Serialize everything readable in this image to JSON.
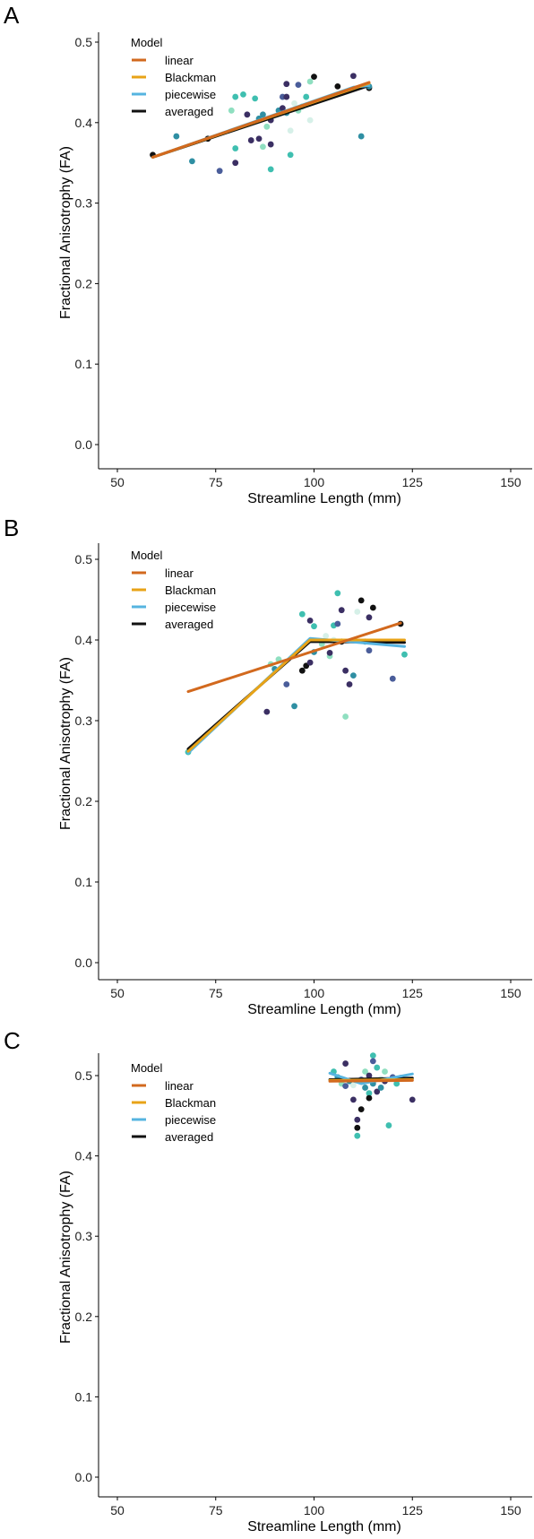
{
  "colors": {
    "linear": "#d2691e",
    "Blackman": "#e8a317",
    "piecewise": "#56b4e0",
    "averaged": "#111111",
    "point_palette": [
      "#3b2f63",
      "#4a5d9a",
      "#2f8fa3",
      "#3fbfb0",
      "#8fdfc0",
      "#d6f0e8",
      "#111111"
    ]
  },
  "chart_data": [
    {
      "panel": "A",
      "type": "scatter",
      "xlabel": "Streamline Length (mm)",
      "ylabel": "Fractional Anisotrophy (FA)",
      "xlim": [
        45,
        155
      ],
      "ylim": [
        -0.03,
        0.525
      ],
      "xticks": [
        "50",
        "75",
        "100",
        "125",
        "150"
      ],
      "xtick_values": [
        50,
        75,
        100,
        125,
        150
      ],
      "yticks": [
        "0.0",
        "0.1",
        "0.2",
        "0.3",
        "0.4",
        "0.5"
      ],
      "ytick_values": [
        0.0,
        0.1,
        0.2,
        0.3,
        0.4,
        0.5
      ],
      "legend": {
        "title": "Model",
        "position": "top-left",
        "entries": [
          "linear",
          "Blackman",
          "piecewise",
          "averaged"
        ]
      },
      "points": [
        {
          "x": 59,
          "y": 0.36,
          "c": 6
        },
        {
          "x": 65,
          "y": 0.383,
          "c": 2
        },
        {
          "x": 69,
          "y": 0.352,
          "c": 2
        },
        {
          "x": 73,
          "y": 0.38,
          "c": 6
        },
        {
          "x": 76,
          "y": 0.34,
          "c": 1
        },
        {
          "x": 79,
          "y": 0.415,
          "c": 4
        },
        {
          "x": 80,
          "y": 0.432,
          "c": 3
        },
        {
          "x": 80,
          "y": 0.368,
          "c": 3
        },
        {
          "x": 80,
          "y": 0.35,
          "c": 0
        },
        {
          "x": 82,
          "y": 0.435,
          "c": 3
        },
        {
          "x": 83,
          "y": 0.41,
          "c": 0
        },
        {
          "x": 84,
          "y": 0.378,
          "c": 0
        },
        {
          "x": 85,
          "y": 0.43,
          "c": 3
        },
        {
          "x": 86,
          "y": 0.38,
          "c": 0
        },
        {
          "x": 86,
          "y": 0.405,
          "c": 2
        },
        {
          "x": 87,
          "y": 0.41,
          "c": 2
        },
        {
          "x": 87,
          "y": 0.37,
          "c": 4
        },
        {
          "x": 88,
          "y": 0.395,
          "c": 4
        },
        {
          "x": 89,
          "y": 0.403,
          "c": 0
        },
        {
          "x": 89,
          "y": 0.342,
          "c": 3
        },
        {
          "x": 89,
          "y": 0.373,
          "c": 0
        },
        {
          "x": 91,
          "y": 0.415,
          "c": 2
        },
        {
          "x": 92,
          "y": 0.432,
          "c": 1
        },
        {
          "x": 92,
          "y": 0.418,
          "c": 0
        },
        {
          "x": 93,
          "y": 0.432,
          "c": 0
        },
        {
          "x": 93,
          "y": 0.448,
          "c": 0
        },
        {
          "x": 93,
          "y": 0.412,
          "c": 2
        },
        {
          "x": 94,
          "y": 0.39,
          "c": 5
        },
        {
          "x": 94,
          "y": 0.36,
          "c": 3
        },
        {
          "x": 95,
          "y": 0.424,
          "c": 5
        },
        {
          "x": 96,
          "y": 0.447,
          "c": 1
        },
        {
          "x": 96,
          "y": 0.415,
          "c": 4
        },
        {
          "x": 97,
          "y": 0.42,
          "c": 4
        },
        {
          "x": 98,
          "y": 0.432,
          "c": 3
        },
        {
          "x": 99,
          "y": 0.451,
          "c": 4
        },
        {
          "x": 99,
          "y": 0.403,
          "c": 5
        },
        {
          "x": 100,
          "y": 0.457,
          "c": 6
        },
        {
          "x": 106,
          "y": 0.445,
          "c": 6
        },
        {
          "x": 110,
          "y": 0.458,
          "c": 0
        },
        {
          "x": 112,
          "y": 0.383,
          "c": 2
        },
        {
          "x": 114,
          "y": 0.443,
          "c": 6
        },
        {
          "x": 114,
          "y": 0.445,
          "c": 2
        }
      ],
      "lines": [
        {
          "model": "averaged",
          "x": [
            59,
            114
          ],
          "y": [
            0.357,
            0.446
          ]
        },
        {
          "model": "piecewise",
          "x": [
            59,
            110,
            114
          ],
          "y": [
            0.357,
            0.444,
            0.446
          ]
        },
        {
          "model": "Blackman",
          "x": [
            59,
            114
          ],
          "y": [
            0.357,
            0.449
          ]
        },
        {
          "model": "linear",
          "x": [
            59,
            114
          ],
          "y": [
            0.357,
            0.45
          ]
        }
      ]
    },
    {
      "panel": "B",
      "type": "scatter",
      "xlabel": "Streamline Length (mm)",
      "ylabel": "Fractional Anisotrophy (FA)",
      "xlim": [
        45,
        155
      ],
      "ylim": [
        -0.03,
        0.525
      ],
      "xticks": [
        "50",
        "75",
        "100",
        "125",
        "150"
      ],
      "xtick_values": [
        50,
        75,
        100,
        125,
        150
      ],
      "yticks": [
        "0.0",
        "0.1",
        "0.2",
        "0.3",
        "0.4",
        "0.5"
      ],
      "ytick_values": [
        0.0,
        0.1,
        0.2,
        0.3,
        0.4,
        0.5
      ],
      "legend": {
        "title": "Model",
        "position": "top-left",
        "entries": [
          "linear",
          "Blackman",
          "piecewise",
          "averaged"
        ]
      },
      "points": [
        {
          "x": 68,
          "y": 0.261,
          "c": 3
        },
        {
          "x": 88,
          "y": 0.311,
          "c": 0
        },
        {
          "x": 89,
          "y": 0.37,
          "c": 4
        },
        {
          "x": 90,
          "y": 0.364,
          "c": 2
        },
        {
          "x": 91,
          "y": 0.376,
          "c": 4
        },
        {
          "x": 93,
          "y": 0.345,
          "c": 1
        },
        {
          "x": 95,
          "y": 0.318,
          "c": 2
        },
        {
          "x": 97,
          "y": 0.362,
          "c": 6
        },
        {
          "x": 97,
          "y": 0.432,
          "c": 3
        },
        {
          "x": 98,
          "y": 0.368,
          "c": 6
        },
        {
          "x": 99,
          "y": 0.372,
          "c": 0
        },
        {
          "x": 99,
          "y": 0.424,
          "c": 0
        },
        {
          "x": 100,
          "y": 0.417,
          "c": 3
        },
        {
          "x": 100,
          "y": 0.385,
          "c": 2
        },
        {
          "x": 102,
          "y": 0.395,
          "c": 4
        },
        {
          "x": 103,
          "y": 0.405,
          "c": 5
        },
        {
          "x": 104,
          "y": 0.38,
          "c": 4
        },
        {
          "x": 104,
          "y": 0.384,
          "c": 0
        },
        {
          "x": 105,
          "y": 0.418,
          "c": 3
        },
        {
          "x": 105,
          "y": 0.4,
          "c": 5
        },
        {
          "x": 106,
          "y": 0.458,
          "c": 3
        },
        {
          "x": 106,
          "y": 0.42,
          "c": 1
        },
        {
          "x": 107,
          "y": 0.437,
          "c": 0
        },
        {
          "x": 107,
          "y": 0.398,
          "c": 6
        },
        {
          "x": 108,
          "y": 0.305,
          "c": 4
        },
        {
          "x": 108,
          "y": 0.362,
          "c": 0
        },
        {
          "x": 109,
          "y": 0.345,
          "c": 0
        },
        {
          "x": 110,
          "y": 0.356,
          "c": 2
        },
        {
          "x": 111,
          "y": 0.435,
          "c": 5
        },
        {
          "x": 112,
          "y": 0.449,
          "c": 6
        },
        {
          "x": 113,
          "y": 0.398,
          "c": 2
        },
        {
          "x": 114,
          "y": 0.428,
          "c": 0
        },
        {
          "x": 114,
          "y": 0.387,
          "c": 1
        },
        {
          "x": 115,
          "y": 0.44,
          "c": 6
        },
        {
          "x": 120,
          "y": 0.352,
          "c": 1
        },
        {
          "x": 122,
          "y": 0.42,
          "c": 6
        },
        {
          "x": 123,
          "y": 0.382,
          "c": 3
        }
      ],
      "lines": [
        {
          "model": "averaged",
          "x": [
            68,
            99,
            123
          ],
          "y": [
            0.265,
            0.398,
            0.397
          ]
        },
        {
          "model": "piecewise",
          "x": [
            68,
            99,
            123
          ],
          "y": [
            0.26,
            0.402,
            0.392
          ]
        },
        {
          "model": "Blackman",
          "x": [
            68,
            99,
            123
          ],
          "y": [
            0.262,
            0.4,
            0.4
          ]
        },
        {
          "model": "linear",
          "x": [
            68,
            122
          ],
          "y": [
            0.336,
            0.421
          ]
        }
      ]
    },
    {
      "panel": "C",
      "type": "scatter",
      "xlabel": "Streamline Length (mm)",
      "ylabel": "Fractional Anisotrophy (FA)",
      "xlim": [
        45,
        155
      ],
      "ylim": [
        -0.03,
        0.525
      ],
      "xticks": [
        "50",
        "75",
        "100",
        "125",
        "150"
      ],
      "xtick_values": [
        50,
        75,
        100,
        125,
        150
      ],
      "yticks": [
        "0.0",
        "0.1",
        "0.2",
        "0.3",
        "0.4",
        "0.5"
      ],
      "ytick_values": [
        0.0,
        0.1,
        0.2,
        0.3,
        0.4,
        0.5
      ],
      "legend": {
        "title": "Model",
        "position": "top-left",
        "entries": [
          "linear",
          "Blackman",
          "piecewise",
          "averaged"
        ]
      },
      "points": [
        {
          "x": 105,
          "y": 0.505,
          "c": 3
        },
        {
          "x": 106,
          "y": 0.498,
          "c": 2
        },
        {
          "x": 107,
          "y": 0.49,
          "c": 4
        },
        {
          "x": 108,
          "y": 0.515,
          "c": 0
        },
        {
          "x": 108,
          "y": 0.487,
          "c": 1
        },
        {
          "x": 109,
          "y": 0.493,
          "c": 2
        },
        {
          "x": 110,
          "y": 0.488,
          "c": 5
        },
        {
          "x": 110,
          "y": 0.47,
          "c": 0
        },
        {
          "x": 111,
          "y": 0.445,
          "c": 0
        },
        {
          "x": 111,
          "y": 0.435,
          "c": 6
        },
        {
          "x": 111,
          "y": 0.425,
          "c": 3
        },
        {
          "x": 112,
          "y": 0.458,
          "c": 6
        },
        {
          "x": 112,
          "y": 0.495,
          "c": 1
        },
        {
          "x": 113,
          "y": 0.485,
          "c": 2
        },
        {
          "x": 113,
          "y": 0.505,
          "c": 4
        },
        {
          "x": 114,
          "y": 0.5,
          "c": 0
        },
        {
          "x": 114,
          "y": 0.478,
          "c": 3
        },
        {
          "x": 114,
          "y": 0.472,
          "c": 6
        },
        {
          "x": 115,
          "y": 0.525,
          "c": 3
        },
        {
          "x": 115,
          "y": 0.518,
          "c": 1
        },
        {
          "x": 115,
          "y": 0.49,
          "c": 2
        },
        {
          "x": 116,
          "y": 0.51,
          "c": 3
        },
        {
          "x": 116,
          "y": 0.48,
          "c": 0
        },
        {
          "x": 117,
          "y": 0.485,
          "c": 2
        },
        {
          "x": 117,
          "y": 0.496,
          "c": 5
        },
        {
          "x": 118,
          "y": 0.505,
          "c": 4
        },
        {
          "x": 118,
          "y": 0.493,
          "c": 0
        },
        {
          "x": 119,
          "y": 0.438,
          "c": 3
        },
        {
          "x": 120,
          "y": 0.498,
          "c": 1
        },
        {
          "x": 121,
          "y": 0.49,
          "c": 3
        },
        {
          "x": 122,
          "y": 0.497,
          "c": 0
        },
        {
          "x": 125,
          "y": 0.47,
          "c": 0
        }
      ],
      "lines": [
        {
          "model": "averaged",
          "x": [
            104,
            125
          ],
          "y": [
            0.495,
            0.497
          ]
        },
        {
          "model": "piecewise",
          "x": [
            104,
            112,
            125
          ],
          "y": [
            0.503,
            0.49,
            0.502
          ]
        },
        {
          "model": "Blackman",
          "x": [
            104,
            125
          ],
          "y": [
            0.494,
            0.495
          ]
        },
        {
          "model": "linear",
          "x": [
            104,
            125
          ],
          "y": [
            0.493,
            0.494
          ]
        }
      ]
    }
  ]
}
